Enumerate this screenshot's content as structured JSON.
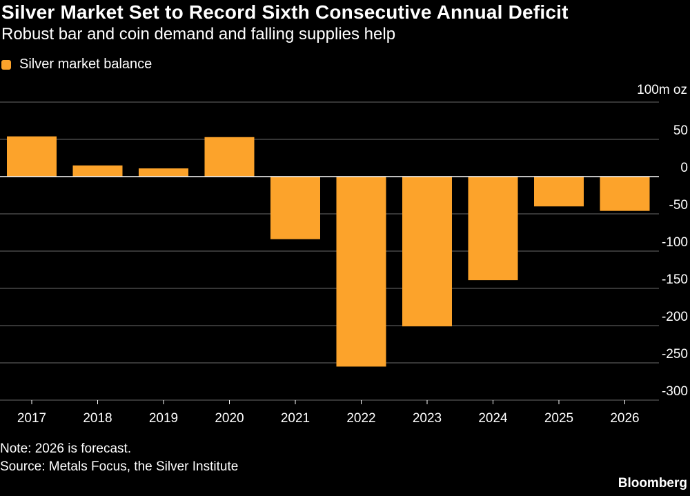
{
  "header": {
    "title": "Silver Market Set to Record Sixth Consecutive Annual Deficit",
    "subtitle": "Robust bar and coin demand and falling supplies help"
  },
  "legend": {
    "label": "Silver market balance"
  },
  "footer": {
    "note": "Note: 2026 is forecast.",
    "source": "Source: Metals Focus, the Silver Institute",
    "brand": "Bloomberg"
  },
  "colors": {
    "background": "#000000",
    "bar": "#fca32b",
    "grid": "#6b6b6b",
    "zero_line": "#ffffff",
    "text": "#ffffff"
  },
  "chart_data": {
    "type": "bar",
    "title": "Silver Market Set to Record Sixth Consecutive Annual Deficit",
    "subtitle": "Robust bar and coin demand and falling supplies help",
    "unit_label": "100m oz",
    "xlabel": "",
    "ylabel": "",
    "categories": [
      "2017",
      "2018",
      "2019",
      "2020",
      "2021",
      "2022",
      "2023",
      "2024",
      "2025",
      "2026"
    ],
    "series": [
      {
        "name": "Silver market balance",
        "values": [
          54,
          15,
          11,
          53,
          -84,
          -255,
          -201,
          -139,
          -40,
          -46
        ]
      }
    ],
    "ylim": [
      -300,
      100
    ],
    "yticks": [
      100,
      50,
      0,
      -50,
      -100,
      -150,
      -200,
      -250,
      -300
    ],
    "ytick_labels": [
      "100m oz",
      "50",
      "0",
      "-50",
      "-100",
      "-150",
      "-200",
      "-250",
      "-300"
    ],
    "grid": true,
    "legend_position": "top-left"
  }
}
